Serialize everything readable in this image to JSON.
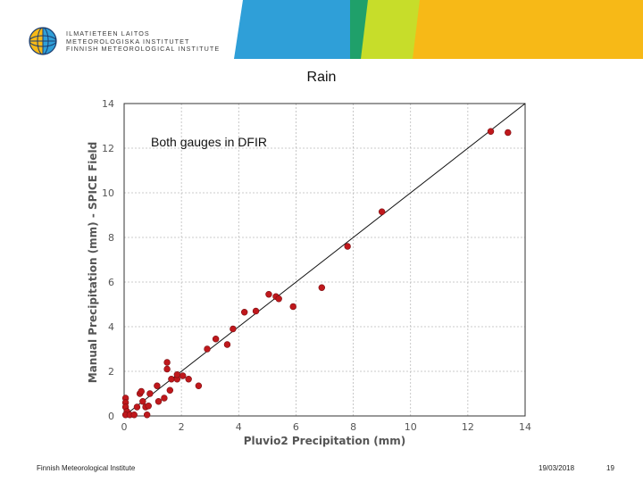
{
  "header": {
    "org_lines": [
      "ILMATIETEEN LAITOS",
      "METEOROLOGISKA INSTITUTET",
      "FINNISH METEOROLOGICAL INSTITUTE"
    ],
    "colors": {
      "blue": "#2f9fd8",
      "green": "#c7dd2a",
      "yellow": "#f7b917",
      "teal": "#1fa06a"
    }
  },
  "slide": {
    "title": "Rain"
  },
  "chart_data": {
    "type": "scatter",
    "annotation": "Both gauges in DFIR",
    "xlabel": "Pluvio2 Precipitation (mm)",
    "ylabel": "Manual Precipitation (mm) - SPICE Field",
    "xlim": [
      0,
      14
    ],
    "ylim": [
      0,
      14
    ],
    "xticks": [
      0,
      2,
      4,
      6,
      8,
      10,
      12,
      14
    ],
    "yticks": [
      0,
      2,
      4,
      6,
      8,
      10,
      12,
      14
    ],
    "grid": true,
    "reference_line": "1:1",
    "marker_color": "#c0181c",
    "points": [
      [
        0.05,
        0.8
      ],
      [
        0.05,
        0.6
      ],
      [
        0.05,
        0.4
      ],
      [
        0.1,
        0.2
      ],
      [
        0.05,
        0.05
      ],
      [
        0.2,
        0.05
      ],
      [
        0.35,
        0.05
      ],
      [
        0.45,
        0.4
      ],
      [
        0.55,
        1.0
      ],
      [
        0.6,
        1.1
      ],
      [
        0.65,
        0.65
      ],
      [
        0.75,
        0.4
      ],
      [
        0.8,
        0.05
      ],
      [
        0.85,
        0.45
      ],
      [
        0.9,
        1.0
      ],
      [
        1.15,
        1.35
      ],
      [
        1.2,
        0.65
      ],
      [
        1.4,
        0.8
      ],
      [
        1.5,
        2.4
      ],
      [
        1.5,
        2.1
      ],
      [
        1.6,
        1.15
      ],
      [
        1.65,
        1.65
      ],
      [
        1.85,
        1.65
      ],
      [
        1.85,
        1.85
      ],
      [
        2.05,
        1.8
      ],
      [
        2.25,
        1.65
      ],
      [
        2.6,
        1.35
      ],
      [
        2.9,
        3.0
      ],
      [
        3.2,
        3.45
      ],
      [
        3.6,
        3.2
      ],
      [
        3.8,
        3.9
      ],
      [
        4.2,
        4.65
      ],
      [
        4.6,
        4.7
      ],
      [
        5.05,
        5.45
      ],
      [
        5.3,
        5.35
      ],
      [
        5.4,
        5.25
      ],
      [
        5.9,
        4.9
      ],
      [
        6.9,
        5.75
      ],
      [
        7.8,
        7.6
      ],
      [
        9.0,
        9.15
      ],
      [
        12.8,
        12.75
      ],
      [
        13.4,
        12.7
      ]
    ]
  },
  "footer": {
    "org": "Finnish Meteorological Institute",
    "date": "19/03/2018",
    "page": "19"
  }
}
